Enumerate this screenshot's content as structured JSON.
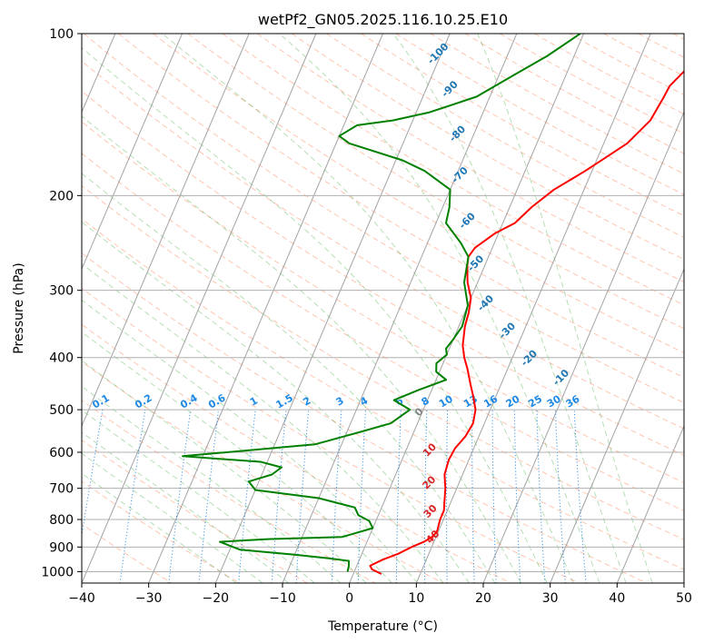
{
  "chart_data": {
    "type": "line",
    "title": "wetPf2_GN05.2025.116.10.25.E10",
    "xlabel": "Temperature (°C)",
    "ylabel": "Pressure (hPa)",
    "xlim": [
      -40,
      50
    ],
    "ylim": [
      1050,
      100
    ],
    "y_scale": "log",
    "x_ticks": [
      -40,
      -30,
      -20,
      -10,
      0,
      10,
      20,
      30,
      40,
      50
    ],
    "y_ticks": [
      100,
      200,
      300,
      400,
      500,
      600,
      700,
      800,
      900,
      1000
    ],
    "grid": true,
    "colors": {
      "temperature": "#ff0000",
      "dewpoint": "#008000",
      "isotherm": "#999999",
      "dry_adiabat": "#ff7f50",
      "moist_adiabat": "#2ca02c",
      "mixing_ratio": "#1e88e5",
      "dry_adiabat_label": "#d62728",
      "moist_adiabat_label": "#1f77b4",
      "zero_label": "#808080"
    },
    "series": [
      {
        "key": "temperature",
        "points": [
          [
            4.2,
            1010
          ],
          [
            2.5,
            990
          ],
          [
            2.0,
            975
          ],
          [
            3.5,
            950
          ],
          [
            5.5,
            925
          ],
          [
            7.0,
            900
          ],
          [
            8.5,
            880
          ],
          [
            9.5,
            860
          ],
          [
            9.8,
            840
          ],
          [
            9.5,
            800
          ],
          [
            9.5,
            770
          ],
          [
            9.0,
            740
          ],
          [
            8.3,
            700
          ],
          [
            7.3,
            660
          ],
          [
            7.0,
            620
          ],
          [
            7.2,
            590
          ],
          [
            8.0,
            560
          ],
          [
            8.3,
            530
          ],
          [
            7.8,
            500
          ],
          [
            6.5,
            470
          ],
          [
            5.5,
            450
          ],
          [
            4.0,
            420
          ],
          [
            2.8,
            400
          ],
          [
            1.8,
            380
          ],
          [
            0.9,
            350
          ],
          [
            0.6,
            330
          ],
          [
            0.0,
            310
          ],
          [
            -1.5,
            290
          ],
          [
            -2.6,
            270
          ],
          [
            -3.0,
            260
          ],
          [
            -2.6,
            250
          ],
          [
            -0.5,
            235
          ],
          [
            1.8,
            225
          ],
          [
            3.3,
            210
          ],
          [
            5.5,
            195
          ],
          [
            9.0,
            180
          ],
          [
            13.5,
            160
          ],
          [
            15.5,
            145
          ],
          [
            16.0,
            132
          ],
          [
            16.2,
            125
          ],
          [
            17.5,
            117
          ],
          [
            20.0,
            110
          ],
          [
            22.5,
            104
          ],
          [
            23.5,
            100
          ]
        ]
      },
      {
        "key": "dewpoint",
        "points": [
          [
            -1.0,
            1000
          ],
          [
            -1.2,
            975
          ],
          [
            -1.5,
            955
          ],
          [
            -4.5,
            945
          ],
          [
            -10.0,
            930
          ],
          [
            -18.5,
            910
          ],
          [
            -22.0,
            880
          ],
          [
            -15.0,
            870
          ],
          [
            -4.0,
            862
          ],
          [
            0.0,
            830
          ],
          [
            -1.0,
            805
          ],
          [
            -3.0,
            785
          ],
          [
            -4.0,
            760
          ],
          [
            -10.0,
            730
          ],
          [
            -20.0,
            705
          ],
          [
            -21.5,
            680
          ],
          [
            -18.5,
            660
          ],
          [
            -17.5,
            640
          ],
          [
            -21.0,
            625
          ],
          [
            -33.0,
            610
          ],
          [
            -14.0,
            580
          ],
          [
            -8.0,
            550
          ],
          [
            -4.0,
            530
          ],
          [
            -2.0,
            500
          ],
          [
            -5.0,
            480
          ],
          [
            -2.0,
            460
          ],
          [
            1.5,
            440
          ],
          [
            -0.5,
            425
          ],
          [
            -1.0,
            410
          ],
          [
            0.0,
            395
          ],
          [
            -0.5,
            385
          ],
          [
            0.0,
            370
          ],
          [
            0.5,
            350
          ],
          [
            0.0,
            320
          ],
          [
            -2.0,
            290
          ],
          [
            -3.0,
            260
          ],
          [
            -5.0,
            245
          ],
          [
            -8.5,
            225
          ],
          [
            -9.0,
            210
          ],
          [
            -10.0,
            195
          ],
          [
            -15.0,
            180
          ],
          [
            -19.0,
            172
          ],
          [
            -28.0,
            160
          ],
          [
            -30.0,
            155
          ],
          [
            -28.0,
            148
          ],
          [
            -23.0,
            145
          ],
          [
            -18.0,
            140
          ],
          [
            -12.0,
            131
          ],
          [
            -8.0,
            120
          ],
          [
            -4.0,
            110
          ],
          [
            -0.5,
            100
          ]
        ]
      }
    ],
    "moist_adiabat_labels": [
      "-100",
      "-90",
      "-80",
      "-70",
      "-60",
      "-50",
      "-40",
      "-30",
      "-20",
      "-10"
    ],
    "mixing_ratio_labels": [
      "0.1",
      "0.2",
      "0.4",
      "0.6",
      "1",
      "1.5",
      "2",
      "3",
      "4",
      "6",
      "8",
      "10",
      "13",
      "16",
      "20",
      "25",
      "30",
      "36"
    ],
    "dry_adiabat_labels": [
      "0",
      "10",
      "20",
      "30",
      "40"
    ]
  }
}
